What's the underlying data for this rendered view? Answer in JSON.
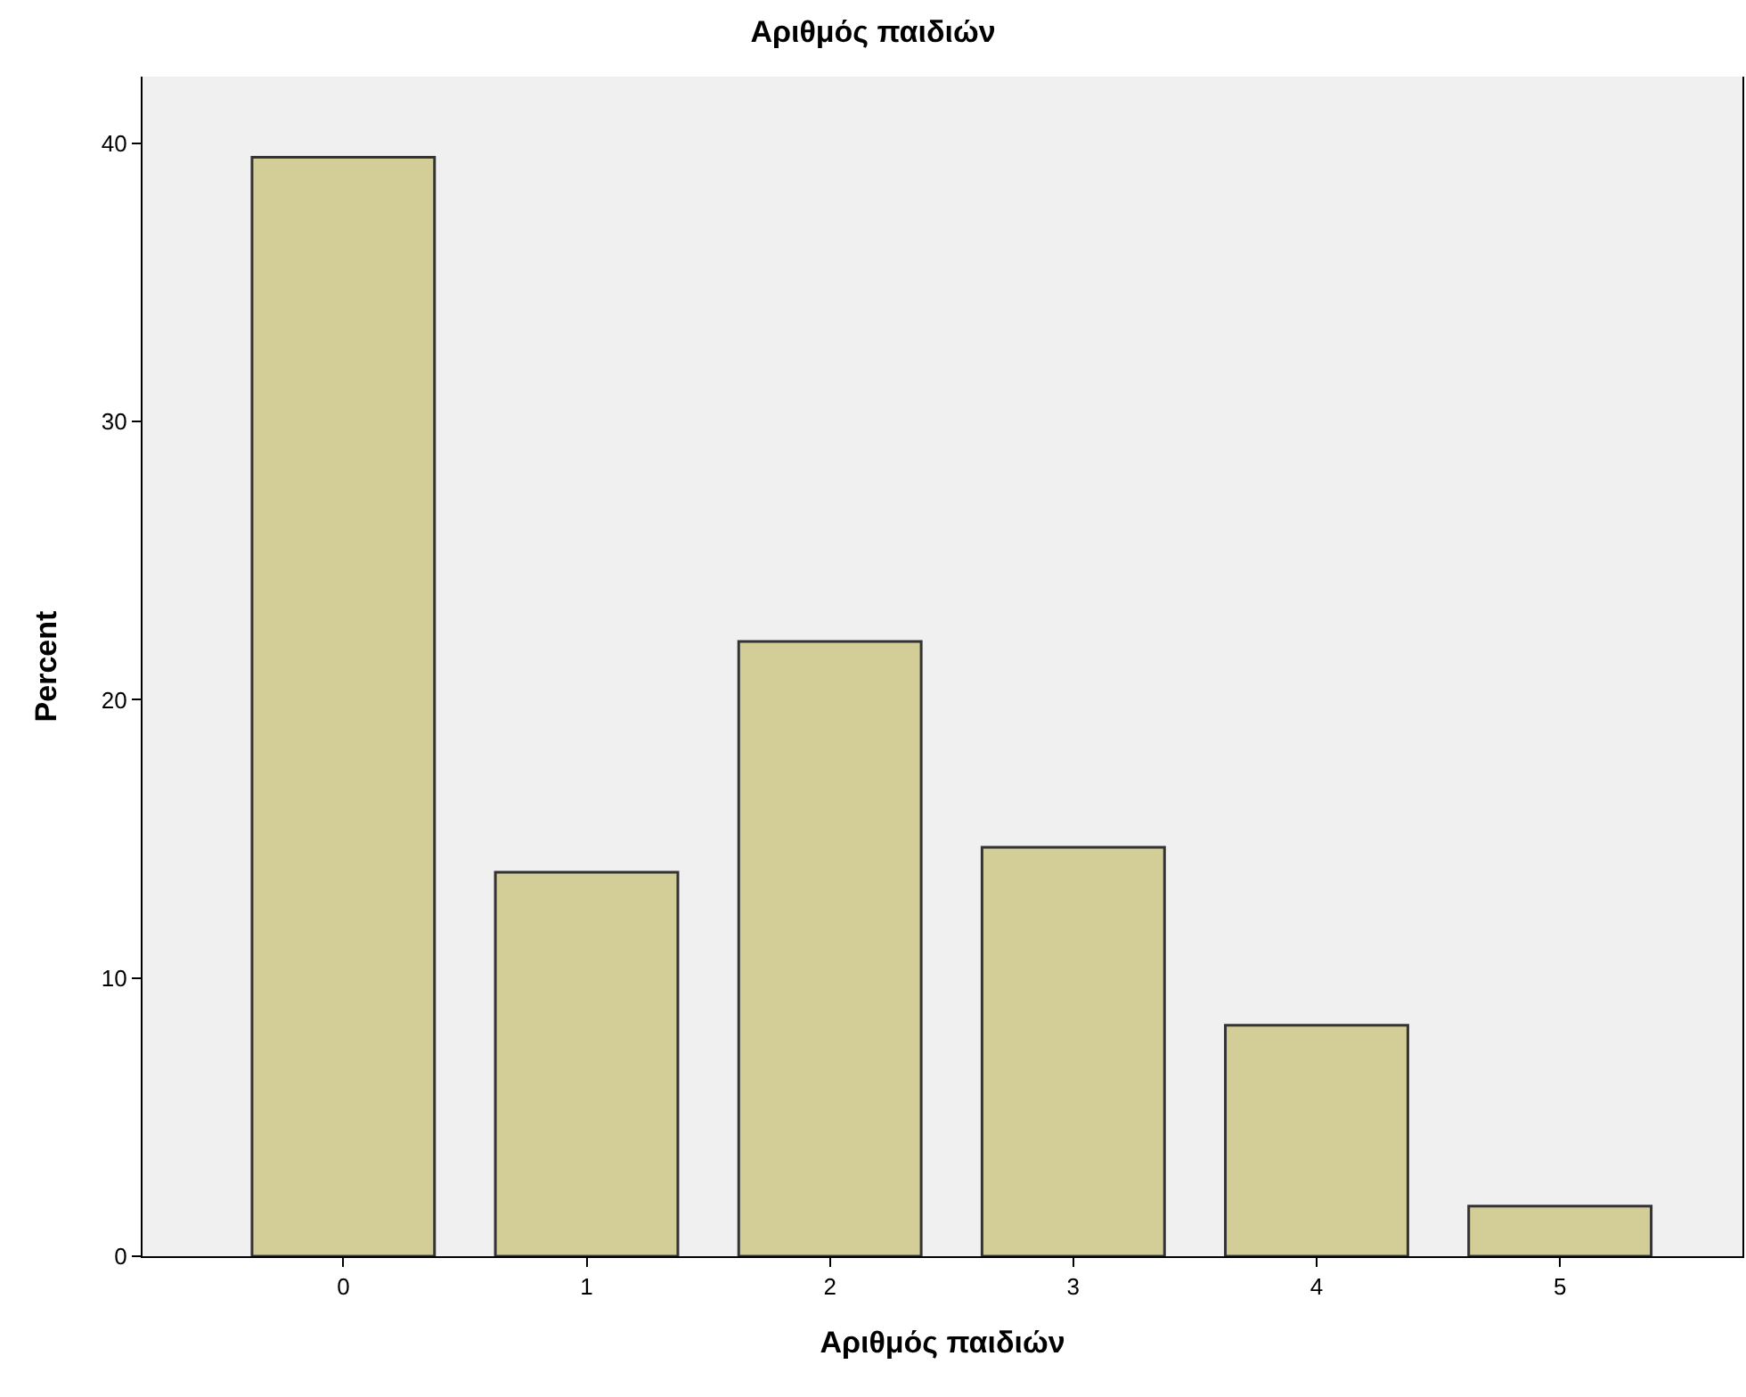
{
  "chart_data": {
    "type": "bar",
    "title": "Αριθμός παιδιών",
    "xlabel": "Αριθμός παιδιών",
    "ylabel": "Percent",
    "categories": [
      "0",
      "1",
      "2",
      "3",
      "4",
      "5"
    ],
    "values": [
      39.5,
      13.8,
      22.1,
      14.7,
      8.3,
      1.8
    ],
    "color": "#d3ce97",
    "ylim": [
      0,
      42.4
    ],
    "yticks": [
      0,
      10,
      20,
      30,
      40
    ],
    "grid": false,
    "legend": false
  }
}
